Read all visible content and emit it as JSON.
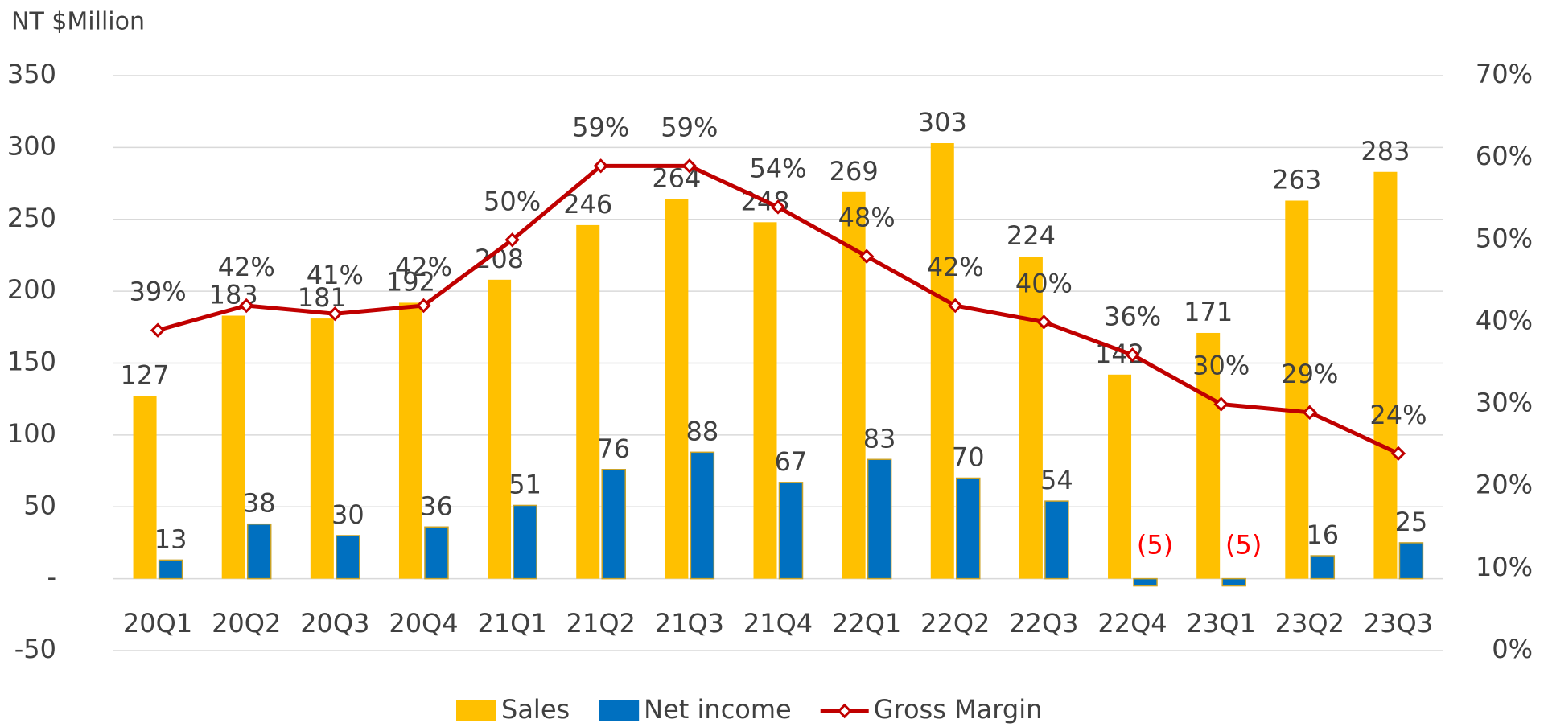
{
  "chart_data": {
    "type": "bar-line",
    "ylabel": "NT $Million",
    "categories": [
      "20Q1",
      "20Q2",
      "20Q3",
      "20Q4",
      "21Q1",
      "21Q2",
      "21Q3",
      "21Q4",
      "22Q1",
      "22Q2",
      "22Q3",
      "22Q4",
      "23Q1",
      "23Q2",
      "23Q3"
    ],
    "series": [
      {
        "name": "Sales",
        "color": "#FFC000",
        "type": "bar",
        "values": [
          127,
          183,
          181,
          192,
          208,
          246,
          264,
          248,
          269,
          303,
          224,
          142,
          171,
          263,
          283
        ]
      },
      {
        "name": "Net income",
        "color": "#0070C0",
        "type": "bar",
        "values": [
          13,
          38,
          30,
          36,
          51,
          76,
          88,
          67,
          83,
          70,
          54,
          -5,
          -5,
          16,
          25
        ],
        "value_labels": [
          "13",
          "38",
          "30",
          "36",
          "51",
          "76",
          "88",
          "67",
          "83",
          "70",
          "54",
          "(5)",
          "(5)",
          "16",
          "25"
        ]
      },
      {
        "name": "Gross Margin",
        "color": "#C00000",
        "type": "line",
        "axis": "y2",
        "values": [
          39,
          42,
          41,
          42,
          50,
          59,
          59,
          54,
          48,
          42,
          40,
          36,
          30,
          29,
          24
        ],
        "value_labels": [
          "39%",
          "42%",
          "41%",
          "42%",
          "50%",
          "59%",
          "59%",
          "54%",
          "48%",
          "42%",
          "40%",
          "36%",
          "30%",
          "29%",
          "24%"
        ]
      }
    ],
    "ylim": [
      -50,
      350
    ],
    "yticks": [
      -50,
      {
        "value": 0,
        "label": "-"
      },
      50,
      100,
      150,
      200,
      250,
      300,
      350
    ],
    "y2lim": [
      0,
      70
    ],
    "y2ticks": [
      {
        "value": 0,
        "label": "0%"
      },
      {
        "value": 10,
        "label": "10%"
      },
      {
        "value": 20,
        "label": "20%"
      },
      {
        "value": 30,
        "label": "30%"
      },
      {
        "value": 40,
        "label": "40%"
      },
      {
        "value": 50,
        "label": "50%"
      },
      {
        "value": 60,
        "label": "60%"
      },
      {
        "value": 70,
        "label": "70%"
      }
    ],
    "grid": true,
    "legend": "bottom"
  }
}
